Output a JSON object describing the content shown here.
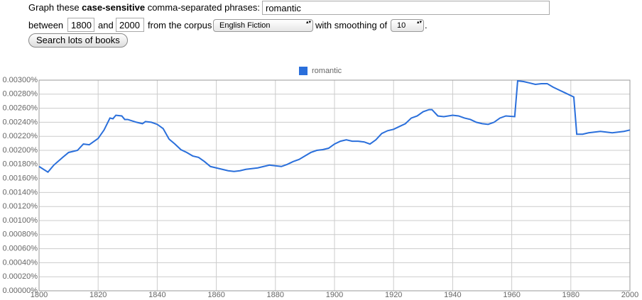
{
  "form": {
    "label_prefix": "Graph these",
    "label_bold": "case-sensitive",
    "label_suffix": "comma-separated phrases:",
    "phrases": "romantic",
    "between": "between",
    "start_year": "1800",
    "and": "and",
    "end_year": "2000",
    "corpus_label": "from the corpus",
    "corpus": "English Fiction",
    "smoothing_label": "with smoothing of",
    "smoothing": "10",
    "period": ".",
    "button": "Search lots of books"
  },
  "chart_data": {
    "type": "line",
    "xlim": [
      1800,
      2000
    ],
    "xticks": [
      1800,
      1820,
      1840,
      1860,
      1880,
      1900,
      1920,
      1940,
      1960,
      1980,
      2000
    ],
    "ylim": [
      0,
      0.003
    ],
    "yticks": [
      {
        "value": 0,
        "label": "0.00000%"
      },
      {
        "value": 0.0002,
        "label": "0.00020%"
      },
      {
        "value": 0.0004,
        "label": "0.00040%"
      },
      {
        "value": 0.0006,
        "label": "0.00060%"
      },
      {
        "value": 0.0008,
        "label": "0.00080%"
      },
      {
        "value": 0.001,
        "label": "0.00100%"
      },
      {
        "value": 0.0012,
        "label": "0.00120%"
      },
      {
        "value": 0.0014,
        "label": "0.00140%"
      },
      {
        "value": 0.0016,
        "label": "0.00160%"
      },
      {
        "value": 0.0018,
        "label": "0.00180%"
      },
      {
        "value": 0.002,
        "label": "0.00200%"
      },
      {
        "value": 0.0022,
        "label": "0.00220%"
      },
      {
        "value": 0.0024,
        "label": "0.00240%"
      },
      {
        "value": 0.0026,
        "label": "0.00260%"
      },
      {
        "value": 0.0028,
        "label": "0.00280%"
      },
      {
        "value": 0.003,
        "label": "0.00300%"
      }
    ],
    "grid": true,
    "legend": "top",
    "x": [
      1800,
      1803,
      1805,
      1808,
      1810,
      1813,
      1815,
      1817,
      1820,
      1822,
      1824,
      1825,
      1826,
      1828,
      1829,
      1830,
      1833,
      1835,
      1836,
      1838,
      1840,
      1842,
      1844,
      1846,
      1848,
      1850,
      1852,
      1854,
      1856,
      1858,
      1860,
      1862,
      1864,
      1866,
      1868,
      1870,
      1872,
      1874,
      1876,
      1878,
      1880,
      1882,
      1884,
      1886,
      1888,
      1890,
      1892,
      1894,
      1896,
      1898,
      1900,
      1902,
      1904,
      1906,
      1908,
      1910,
      1912,
      1914,
      1916,
      1918,
      1920,
      1922,
      1924,
      1926,
      1928,
      1930,
      1932,
      1933,
      1935,
      1937,
      1940,
      1942,
      1944,
      1946,
      1948,
      1950,
      1952,
      1954,
      1956,
      1958,
      1961,
      1962,
      1964,
      1966,
      1968,
      1970,
      1972,
      1974,
      1976,
      1978,
      1981,
      1982,
      1984,
      1986,
      1988,
      1990,
      1992,
      1994,
      1996,
      1998,
      2000
    ],
    "series": [
      {
        "name": "romantic",
        "color": "#2a6fdb",
        "values": [
          0.00177,
          0.00169,
          0.00179,
          0.0019,
          0.00197,
          0.002,
          0.00209,
          0.00208,
          0.00217,
          0.00229,
          0.00246,
          0.00245,
          0.0025,
          0.00249,
          0.00244,
          0.00244,
          0.0024,
          0.00238,
          0.00241,
          0.0024,
          0.00237,
          0.00231,
          0.00216,
          0.00209,
          0.00201,
          0.00197,
          0.00192,
          0.0019,
          0.00184,
          0.00177,
          0.00175,
          0.00173,
          0.00171,
          0.0017,
          0.00171,
          0.00173,
          0.00174,
          0.00175,
          0.00177,
          0.00179,
          0.00178,
          0.00177,
          0.0018,
          0.00184,
          0.00187,
          0.00192,
          0.00197,
          0.002,
          0.00201,
          0.00203,
          0.00209,
          0.00213,
          0.00215,
          0.00213,
          0.00213,
          0.00212,
          0.00209,
          0.00215,
          0.00224,
          0.00228,
          0.0023,
          0.00234,
          0.00238,
          0.00246,
          0.00249,
          0.00255,
          0.00258,
          0.00258,
          0.00249,
          0.00248,
          0.0025,
          0.00249,
          0.00246,
          0.00244,
          0.0024,
          0.00238,
          0.00237,
          0.0024,
          0.00246,
          0.00249,
          0.00248,
          0.00299,
          0.00298,
          0.00296,
          0.00294,
          0.00295,
          0.00295,
          0.0029,
          0.00286,
          0.00282,
          0.00276,
          0.00223,
          0.00223,
          0.00225,
          0.00226,
          0.00227,
          0.00226,
          0.00225,
          0.00226,
          0.00227,
          0.00229
        ]
      }
    ]
  }
}
